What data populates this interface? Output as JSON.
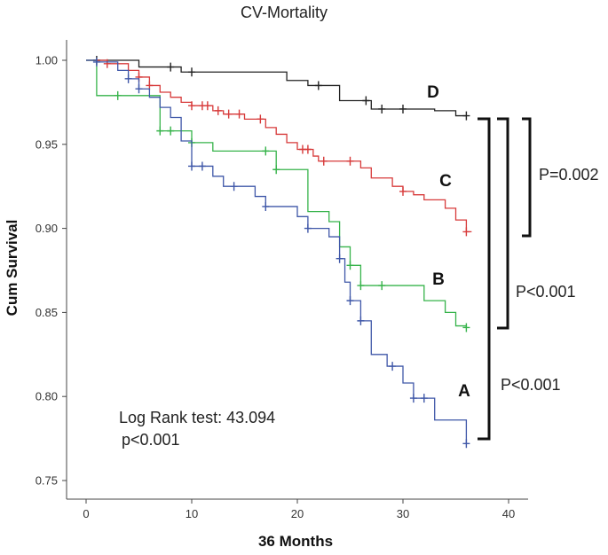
{
  "chart_data": {
    "type": "line",
    "title": "CV-Mortality",
    "xlabel": "36 Months",
    "ylabel": "Cum Survival",
    "xlim": [
      0,
      40
    ],
    "ylim": [
      0.75,
      1.0
    ],
    "x_ticks": [
      0,
      10,
      20,
      30,
      40
    ],
    "x_tick_labels": [
      "0",
      "10",
      "20",
      "30",
      "40"
    ],
    "y_ticks": [
      0.75,
      0.8,
      0.85,
      0.9,
      0.95,
      1.0
    ],
    "y_tick_labels": [
      "0.75",
      "0.80",
      "0.85",
      "0.90",
      "0.95",
      "1.00"
    ],
    "series": [
      {
        "name": "D",
        "color": "#222222",
        "steps": [
          [
            0,
            1.0
          ],
          [
            5,
            0.996
          ],
          [
            9,
            0.993
          ],
          [
            19,
            0.988
          ],
          [
            21,
            0.985
          ],
          [
            24,
            0.976
          ],
          [
            27,
            0.971
          ],
          [
            33,
            0.97
          ],
          [
            35,
            0.967
          ],
          [
            36,
            0.967
          ]
        ],
        "censor_x": [
          1,
          8,
          10,
          22,
          26.5,
          28,
          30,
          36
        ]
      },
      {
        "name": "C",
        "color": "#d73a3a",
        "steps": [
          [
            0,
            1.0
          ],
          [
            2,
            0.998
          ],
          [
            4,
            0.994
          ],
          [
            5,
            0.99
          ],
          [
            6,
            0.985
          ],
          [
            7,
            0.981
          ],
          [
            8,
            0.978
          ],
          [
            9,
            0.975
          ],
          [
            10,
            0.973
          ],
          [
            12,
            0.97
          ],
          [
            13,
            0.968
          ],
          [
            15,
            0.965
          ],
          [
            17,
            0.96
          ],
          [
            18,
            0.956
          ],
          [
            19,
            0.951
          ],
          [
            20,
            0.947
          ],
          [
            21.5,
            0.943
          ],
          [
            22,
            0.94
          ],
          [
            26,
            0.936
          ],
          [
            27,
            0.93
          ],
          [
            29,
            0.925
          ],
          [
            30,
            0.922
          ],
          [
            31,
            0.92
          ],
          [
            32,
            0.917
          ],
          [
            34,
            0.912
          ],
          [
            35,
            0.905
          ],
          [
            36,
            0.898
          ],
          [
            36.5,
            0.898
          ]
        ],
        "censor_x": [
          2,
          5,
          6,
          10,
          11,
          11.5,
          12.5,
          13.5,
          14.5,
          16.5,
          20.5,
          21,
          22.5,
          25,
          30,
          36
        ]
      },
      {
        "name": "B",
        "color": "#36b34a",
        "steps": [
          [
            0,
            1.0
          ],
          [
            1,
            0.979
          ],
          [
            7,
            0.958
          ],
          [
            10,
            0.951
          ],
          [
            12,
            0.946
          ],
          [
            18,
            0.935
          ],
          [
            21,
            0.91
          ],
          [
            23,
            0.904
          ],
          [
            24,
            0.889
          ],
          [
            25,
            0.878
          ],
          [
            26,
            0.866
          ],
          [
            32,
            0.857
          ],
          [
            34,
            0.85
          ],
          [
            35,
            0.842
          ],
          [
            36,
            0.841
          ]
        ],
        "censor_x": [
          3,
          7,
          8,
          10,
          17,
          18,
          25,
          26,
          28,
          36
        ]
      },
      {
        "name": "A",
        "color": "#3f57a8",
        "steps": [
          [
            0,
            1.0
          ],
          [
            1,
            0.999
          ],
          [
            3,
            0.994
          ],
          [
            4,
            0.989
          ],
          [
            5,
            0.983
          ],
          [
            6,
            0.978
          ],
          [
            7,
            0.972
          ],
          [
            8,
            0.966
          ],
          [
            9,
            0.952
          ],
          [
            10,
            0.937
          ],
          [
            12,
            0.931
          ],
          [
            13,
            0.925
          ],
          [
            16,
            0.919
          ],
          [
            17,
            0.913
          ],
          [
            20,
            0.907
          ],
          [
            21,
            0.9
          ],
          [
            23,
            0.895
          ],
          [
            24,
            0.882
          ],
          [
            24.5,
            0.868
          ],
          [
            25,
            0.857
          ],
          [
            26,
            0.845
          ],
          [
            27,
            0.825
          ],
          [
            28.5,
            0.818
          ],
          [
            30,
            0.808
          ],
          [
            31,
            0.799
          ],
          [
            33,
            0.786
          ],
          [
            36,
            0.772
          ]
        ],
        "censor_x": [
          1,
          4,
          5,
          10,
          11,
          14,
          17,
          21,
          24,
          25,
          26,
          29,
          31,
          32,
          36
        ]
      }
    ],
    "annotations": {
      "log_rank": "Log Rank test: 43.094",
      "log_rank_p": "p<0.001",
      "bracket_labels": {
        "dc": "P=0.002",
        "db": "P<0.001",
        "da": "P<0.001"
      }
    }
  }
}
